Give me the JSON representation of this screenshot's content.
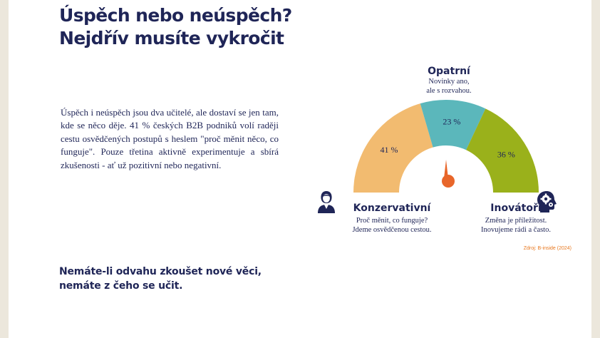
{
  "slide": {
    "title_lines": [
      "Úspěch nebo neúspěch?",
      "Nejdřív musíte vykročit"
    ],
    "body": "Úspěch i neúspěch jsou dva učitelé, ale dostaví se jen tam, kde se něco děje. 41 % českých B2B podniků volí raději cestu osvědčených postupů s heslem \"proč měnit něco, co funguje\". Pouze třetina aktivně experimentuje a sbírá zkušenosti - ať už pozitivní nebo negativní.",
    "tagline_lines": [
      "Nemáte-li odvahu zkoušet nové věci,",
      "nemáte z čeho se učit."
    ]
  },
  "chart_data": {
    "type": "pie",
    "style": "half-donut gauge",
    "slices": [
      {
        "label": "Konzervativní",
        "value": 41,
        "value_label": "41 %",
        "color": "#f2bb70",
        "desc_lines": [
          "Proč měnit, co funguje?",
          "Jdeme osvědčenou cestou."
        ]
      },
      {
        "label": "Opatrní",
        "value": 23,
        "value_label": "23 %",
        "color": "#5bb7bb",
        "desc_lines": [
          "Novinky ano,",
          "ale s rozvahou."
        ]
      },
      {
        "label": "Inovátoři",
        "value": 36,
        "value_label": "36 %",
        "color": "#9ab11b",
        "desc_lines": [
          "Změna je příležitost.",
          "Inovujeme rádi a často."
        ]
      }
    ],
    "needle_color": "#e8662a",
    "source": "Zdroj: B-inside (2024)"
  },
  "icons": {
    "left": "person-icon",
    "right": "head-gear-icon"
  },
  "colors": {
    "text": "#1f2557",
    "accent": "#e8781f"
  }
}
